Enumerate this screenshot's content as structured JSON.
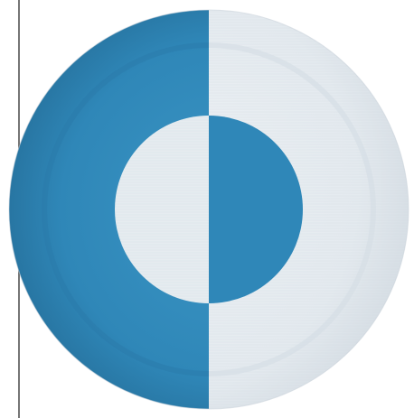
{
  "plate": {
    "colors": {
      "background": "#ffffff",
      "blue": "#2f87b8",
      "blue_dark": "#1f6f9c",
      "blue_light": "#3c93c2",
      "white": "#e9eef2",
      "white_shade": "#d8e0e7",
      "edge_line": "#3b3b3b"
    },
    "design": "circle-split-halves-inverted"
  }
}
